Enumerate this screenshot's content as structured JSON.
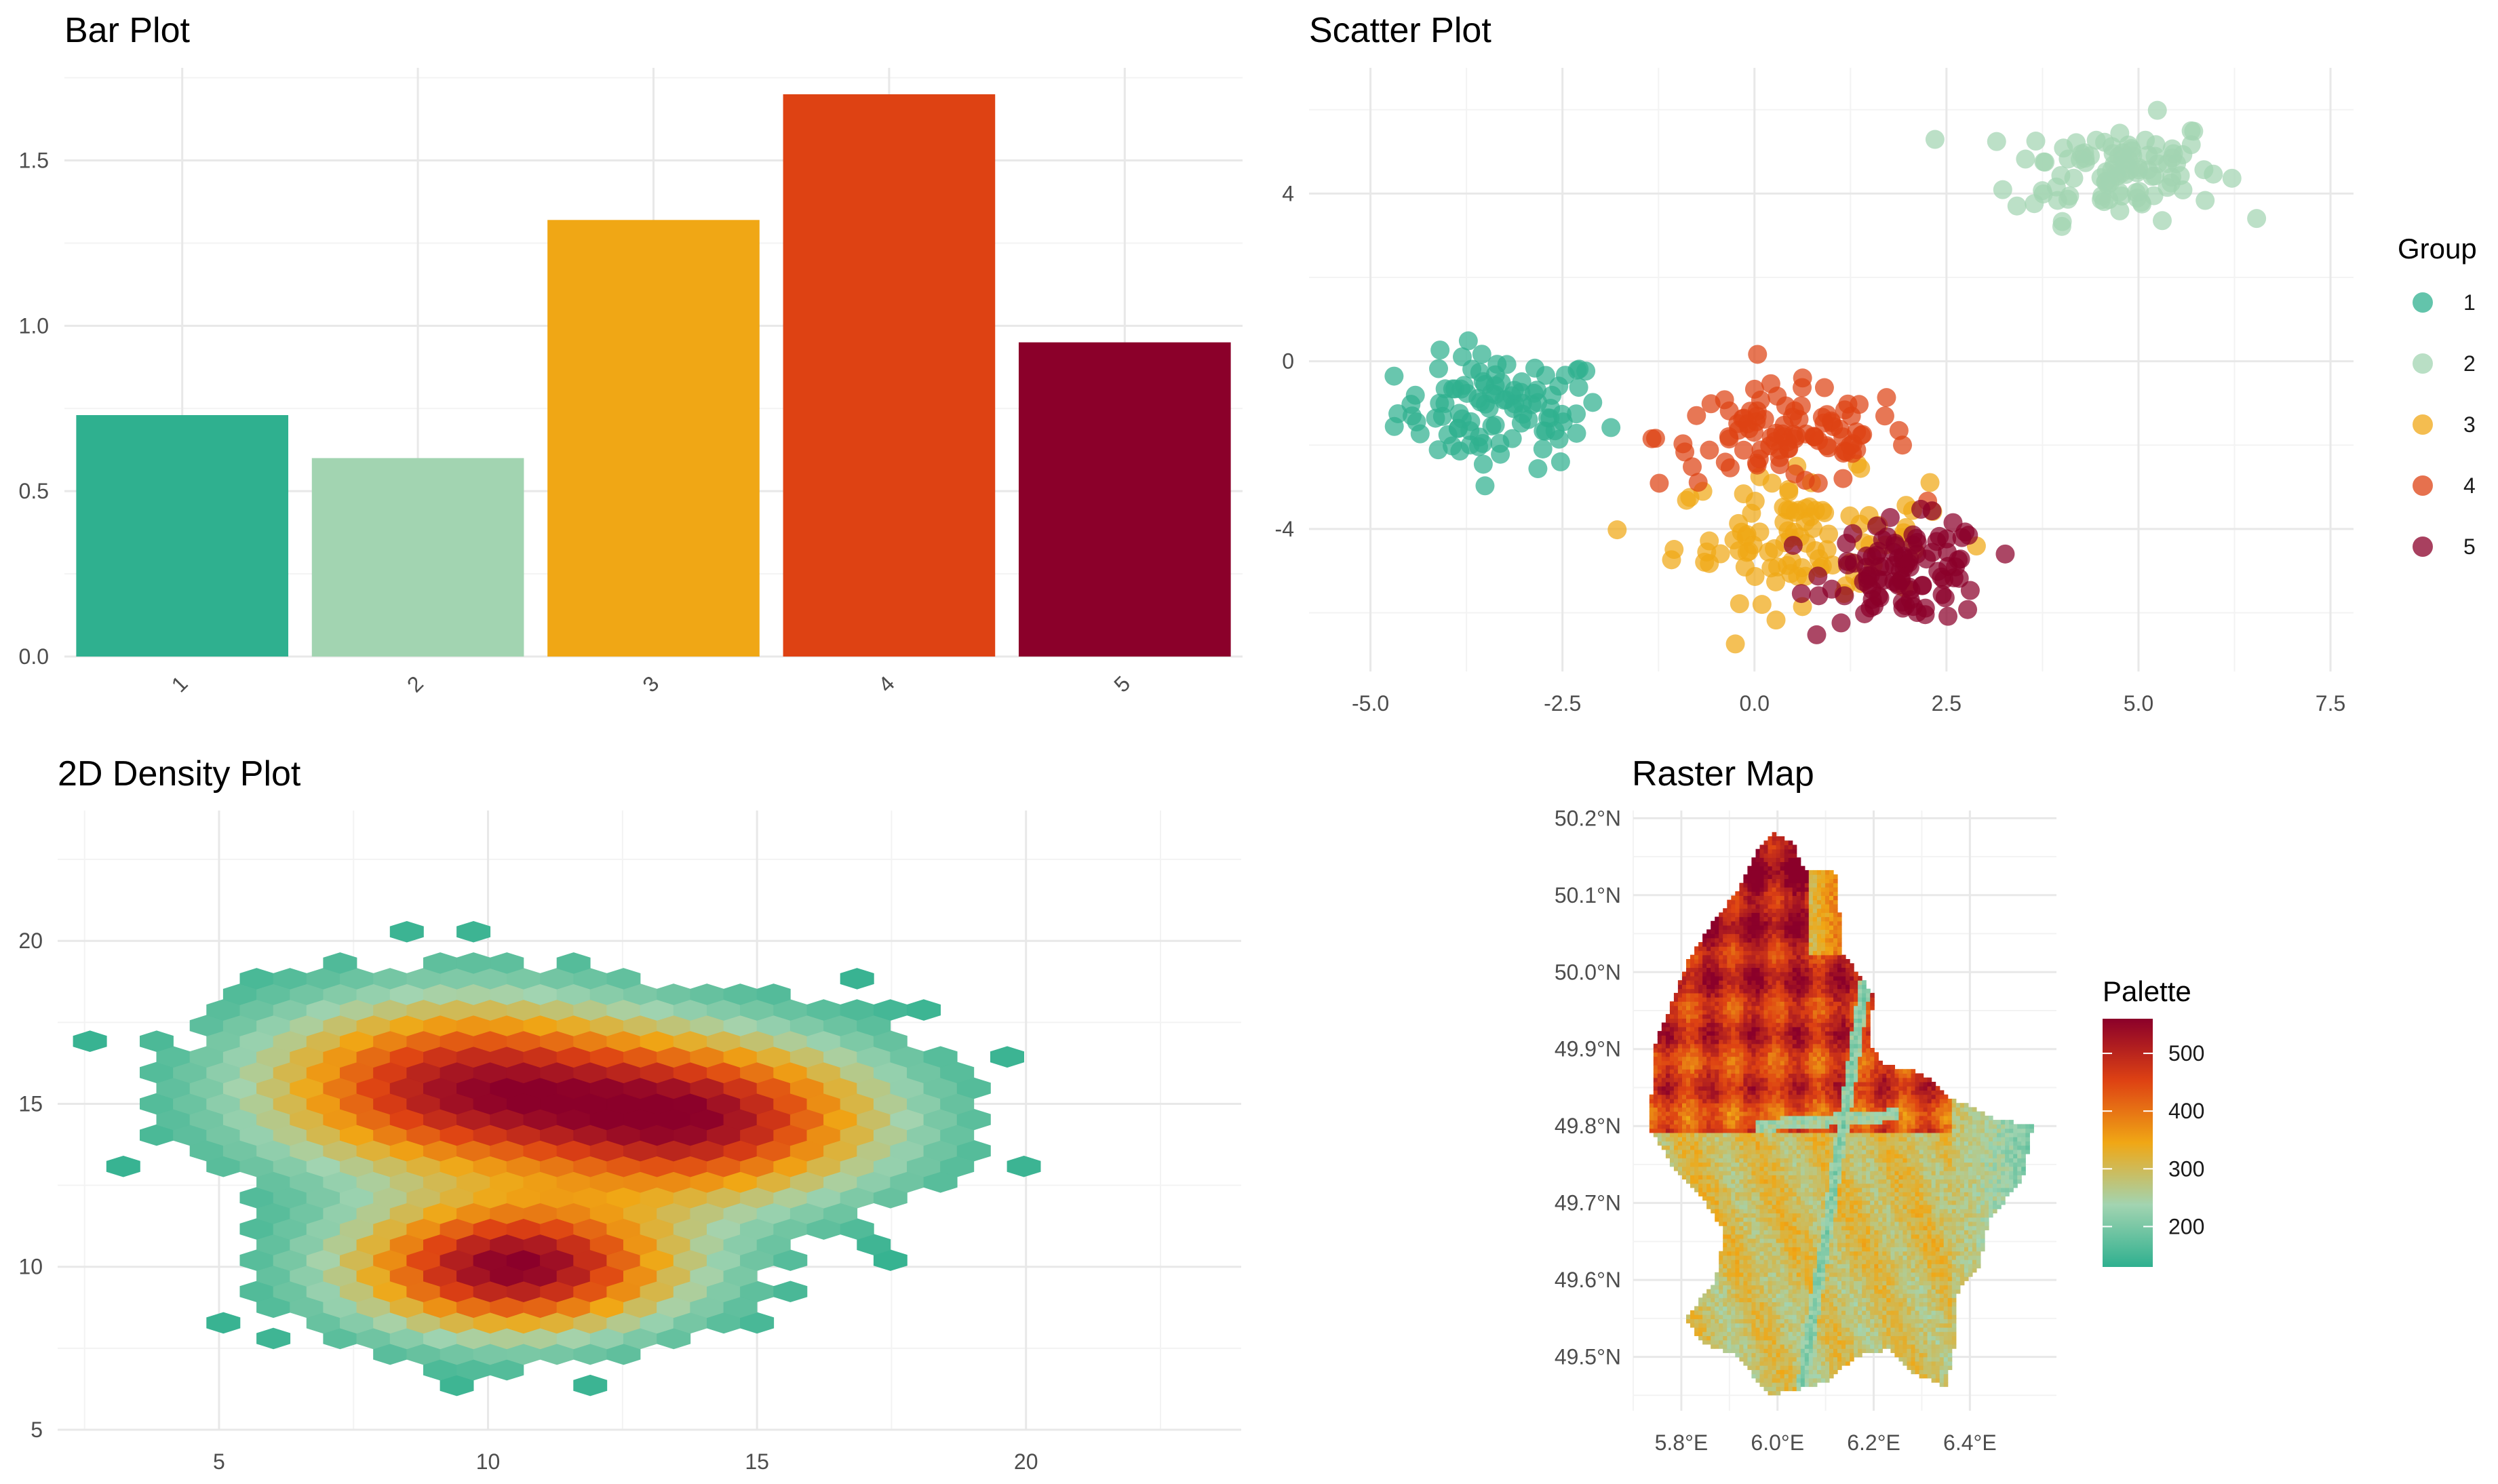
{
  "chart_data": [
    {
      "type": "bar",
      "title": "Bar Plot",
      "categories": [
        "1",
        "2",
        "3",
        "4",
        "5"
      ],
      "values": [
        0.73,
        0.6,
        1.32,
        1.7,
        0.95
      ],
      "colors": [
        "#2fb08f",
        "#a2d4b1",
        "#f0a715",
        "#de4213",
        "#8b002a"
      ],
      "ylim": [
        0,
        1.78
      ],
      "yticks": [
        0.0,
        0.5,
        1.0,
        1.5
      ],
      "ytick_labels": [
        "0.0",
        "0.5",
        "1.0",
        "1.5"
      ],
      "xlabel": "",
      "ylabel": "",
      "grid": true
    },
    {
      "type": "scatter",
      "title": "Scatter Plot",
      "xlim": [
        -5.8,
        7.8
      ],
      "ylim": [
        -7.4,
        7.0
      ],
      "xticks": [
        -5.0,
        -2.5,
        0.0,
        2.5,
        5.0,
        7.5
      ],
      "xtick_labels": [
        "-5.0",
        "-2.5",
        "0.0",
        "2.5",
        "5.0",
        "7.5"
      ],
      "yticks": [
        -4,
        0,
        4
      ],
      "ytick_labels": [
        "-4",
        "0",
        "4"
      ],
      "legend": {
        "title": "Group",
        "position": "right"
      },
      "series": [
        {
          "name": "1",
          "color": "#2fb08f",
          "center": [
            -3.3,
            -1.2
          ],
          "spread": [
            0.9,
            0.9
          ],
          "n": 100
        },
        {
          "name": "2",
          "color": "#a2d4b1",
          "center": [
            4.7,
            4.6
          ],
          "spread": [
            0.9,
            0.8
          ],
          "n": 100
        },
        {
          "name": "3",
          "color": "#f0a715",
          "center": [
            0.6,
            -4.2
          ],
          "spread": [
            1.1,
            1.0
          ],
          "n": 100
        },
        {
          "name": "4",
          "color": "#de4213",
          "center": [
            0.4,
            -1.8
          ],
          "spread": [
            1.1,
            0.8
          ],
          "n": 100
        },
        {
          "name": "5",
          "color": "#8b002a",
          "center": [
            2.0,
            -5.0
          ],
          "spread": [
            0.7,
            0.8
          ],
          "n": 100
        }
      ],
      "grid": true
    },
    {
      "type": "heatmap",
      "title": "2D Density Plot",
      "xlim": [
        2.0,
        24.0
      ],
      "ylim": [
        5.0,
        24.0
      ],
      "xticks": [
        5,
        10,
        15,
        20
      ],
      "xtick_labels": [
        "5",
        "10",
        "15",
        "20"
      ],
      "yticks": [
        5,
        10,
        15,
        20
      ],
      "ytick_labels": [
        "5",
        "10",
        "15",
        "20"
      ],
      "cluster_centers": [
        [
          9.5,
          15.5
        ],
        [
          14.0,
          14.5
        ],
        [
          10.5,
          10.0
        ]
      ],
      "color_scale": [
        "#2fb08f",
        "#a2d4b1",
        "#f0a715",
        "#de4213",
        "#8b002a"
      ],
      "grid": true
    },
    {
      "type": "heatmap",
      "title": "Raster Map",
      "xlim": [
        5.7,
        6.58
      ],
      "ylim": [
        49.43,
        50.21
      ],
      "xticks": [
        5.8,
        6.0,
        6.2,
        6.4
      ],
      "xtick_labels": [
        "5.8°E",
        "6.0°E",
        "6.2°E",
        "6.4°E"
      ],
      "yticks": [
        49.5,
        49.6,
        49.7,
        49.8,
        49.9,
        50.0,
        50.1,
        50.2
      ],
      "ytick_labels": [
        "49.5°N",
        "49.6°N",
        "49.7°N",
        "49.8°N",
        "49.9°N",
        "50.0°N",
        "50.1°N",
        "50.2°N"
      ],
      "colorbar": {
        "title": "Palette",
        "range": [
          130,
          560
        ],
        "ticks": [
          200,
          300,
          400,
          500
        ],
        "tick_labels": [
          "200",
          "300",
          "400",
          "500"
        ],
        "colors": [
          "#2fb08f",
          "#a2d4b1",
          "#f0a715",
          "#de4213",
          "#8b002a"
        ]
      },
      "grid": true
    }
  ]
}
